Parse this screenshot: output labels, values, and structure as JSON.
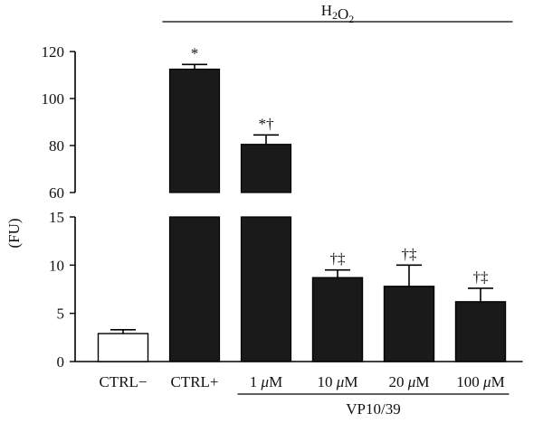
{
  "chart_data": {
    "type": "bar",
    "ylabel": "(FU)",
    "broken_axis": {
      "lower_range": [
        0,
        15
      ],
      "upper_range": [
        60,
        120
      ],
      "lower_ticks": [
        "0",
        "5",
        "10",
        "15"
      ],
      "upper_ticks": [
        "60",
        "80",
        "100",
        "120"
      ]
    },
    "categories": [
      "CTRL−",
      "CTRL+",
      "1 μM",
      "10 μM",
      "20 μM",
      "100 μM"
    ],
    "values": [
      2.9,
      112.5,
      80.5,
      8.7,
      7.8,
      6.2
    ],
    "errors": [
      0.4,
      2.0,
      4.0,
      0.8,
      2.2,
      1.4
    ],
    "annotations": [
      "",
      "*",
      "*†",
      "†‡",
      "†‡",
      "†‡"
    ],
    "bar_colors": [
      "#ffffff",
      "#1a1a1a",
      "#1a1a1a",
      "#1a1a1a",
      "#1a1a1a",
      "#1a1a1a"
    ],
    "group_labels": {
      "top": {
        "text_main": "H",
        "sub1": "2",
        "mid": "O",
        "sub2": "2",
        "start_index": 1,
        "end_index": 5
      },
      "bottom": {
        "text": "VP10/39",
        "start_index": 2,
        "end_index": 5
      }
    }
  }
}
